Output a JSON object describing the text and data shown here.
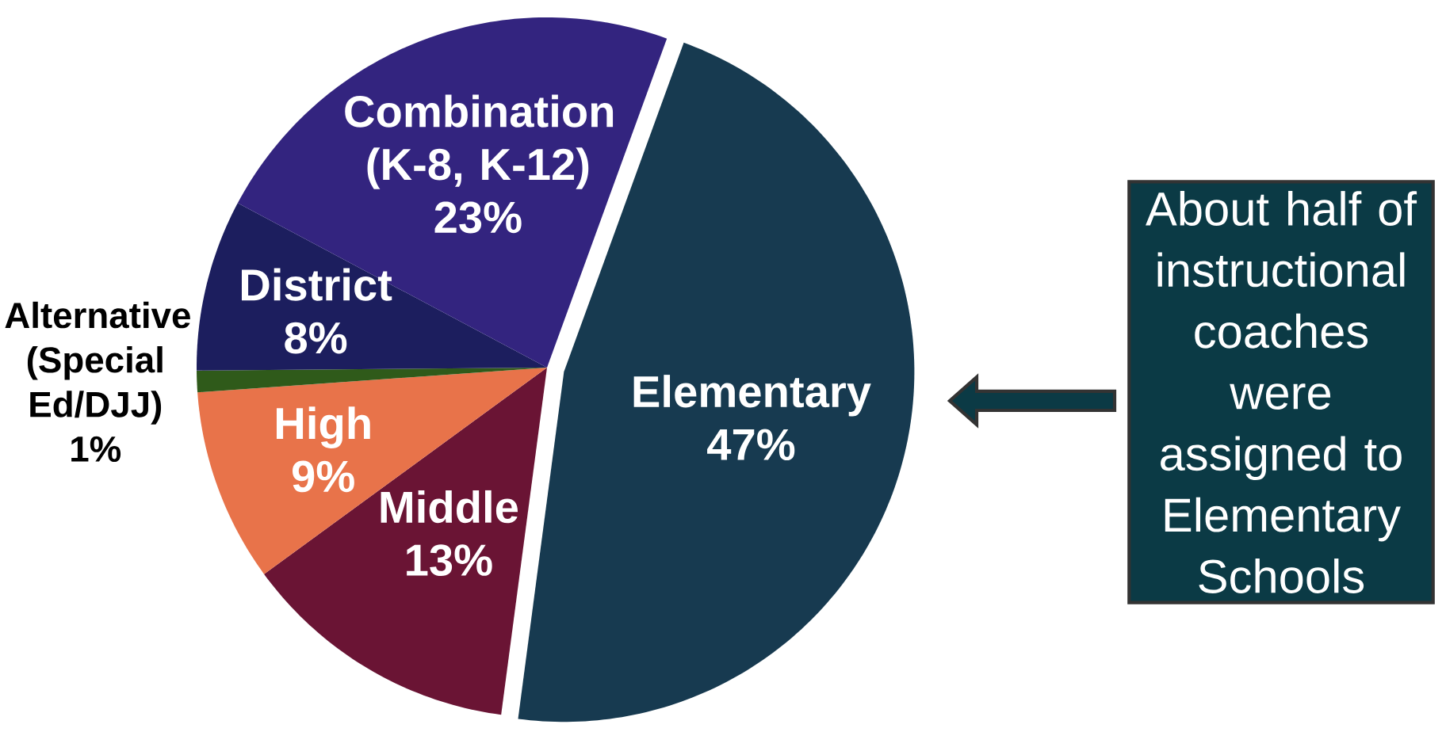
{
  "chart_data": {
    "type": "pie",
    "categories": [
      "Elementary",
      "Middle",
      "High",
      "Alternative (Special Ed/DJJ)",
      "District",
      "Combination (K-8, K-12)"
    ],
    "values": [
      47,
      13,
      9,
      1,
      8,
      23
    ],
    "value_labels": [
      "47%",
      "13%",
      "9%",
      "1%",
      "8%",
      "23%"
    ],
    "colors": [
      "#173a50",
      "#6a1434",
      "#e8734a",
      "#2f5a1a",
      "#1c1e5e",
      "#33247f"
    ],
    "annotations": [
      "About half of instructional coaches were assigned to Elementary Schools"
    ]
  }
}
